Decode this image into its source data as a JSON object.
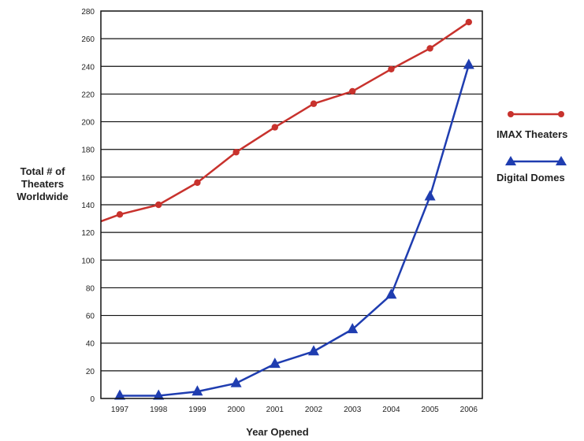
{
  "chart_data": {
    "type": "line",
    "title": "",
    "xlabel": "Year Opened",
    "ylabel": [
      "Total # of",
      "Theaters",
      "Worldwide"
    ],
    "categories": [
      "1997",
      "1998",
      "1999",
      "2000",
      "2001",
      "2002",
      "2003",
      "2004",
      "2005",
      "2006"
    ],
    "yticks": [
      "0",
      "20",
      "40",
      "60",
      "80",
      "100",
      "120",
      "140",
      "160",
      "180",
      "200",
      "220",
      "240",
      "260",
      "280"
    ],
    "ylim": [
      0,
      280
    ],
    "grid": true,
    "legend_position": "right",
    "series": [
      {
        "name": "IMAX Theaters",
        "color": "#c8322d",
        "marker": "circle",
        "values": [
          133,
          140,
          156,
          178,
          196,
          213,
          222,
          238,
          253,
          272
        ],
        "extends_left_to": 128
      },
      {
        "name": "Digital Domes",
        "color": "#1f3db0",
        "marker": "triangle",
        "values": [
          2,
          2,
          5,
          11,
          25,
          34,
          50,
          75,
          146,
          241
        ]
      }
    ]
  }
}
